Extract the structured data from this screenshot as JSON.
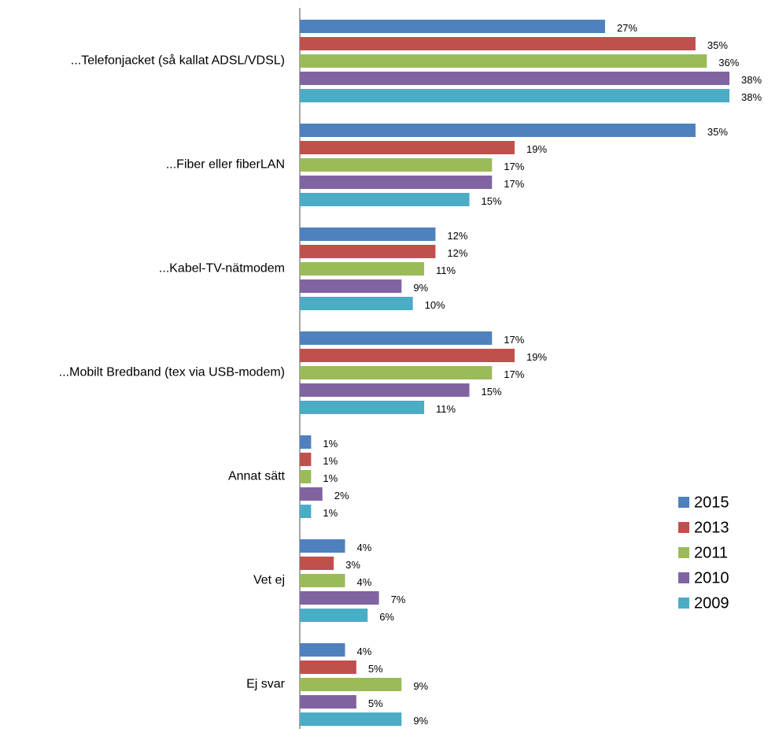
{
  "chart_data": {
    "type": "hbar",
    "categories": [
      "...Telefonjacket (så kallat ADSL/VDSL)",
      "...Fiber eller fiberLAN",
      "...Kabel-TV-nätmodem",
      "...Mobilt Bredband (tex via USB-modem)",
      "Annat sätt",
      "Vet ej",
      "Ej svar"
    ],
    "series": [
      {
        "name": "2015",
        "color": "#4f81bd",
        "values": [
          27,
          35,
          12,
          17,
          1,
          4,
          4
        ],
        "value_labels": [
          "27%",
          "35%",
          "12%",
          "17%",
          "1%",
          "4%",
          "4%"
        ]
      },
      {
        "name": "2013",
        "color": "#c0504d",
        "values": [
          35,
          19,
          12,
          19,
          1,
          3,
          5
        ],
        "value_labels": [
          "35%",
          "19%",
          "12%",
          "19%",
          "1%",
          "3%",
          "5%"
        ]
      },
      {
        "name": "2011",
        "color": "#9bbb59",
        "values": [
          36,
          17,
          11,
          17,
          1,
          4,
          9
        ],
        "value_labels": [
          "36%",
          "17%",
          "11%",
          "17%",
          "1%",
          "4%",
          "9%"
        ]
      },
      {
        "name": "2010",
        "color": "#8064a2",
        "values": [
          38,
          17,
          9,
          15,
          2,
          7,
          5
        ],
        "value_labels": [
          "38%",
          "17%",
          "9%",
          "15%",
          "2%",
          "7%",
          "5%"
        ]
      },
      {
        "name": "2009",
        "color": "#4bacc6",
        "values": [
          38,
          15,
          10,
          11,
          1,
          6,
          9
        ],
        "value_labels": [
          "38%",
          "15%",
          "10%",
          "11%",
          "1%",
          "6%",
          "9%"
        ]
      }
    ],
    "legend": "right"
  }
}
